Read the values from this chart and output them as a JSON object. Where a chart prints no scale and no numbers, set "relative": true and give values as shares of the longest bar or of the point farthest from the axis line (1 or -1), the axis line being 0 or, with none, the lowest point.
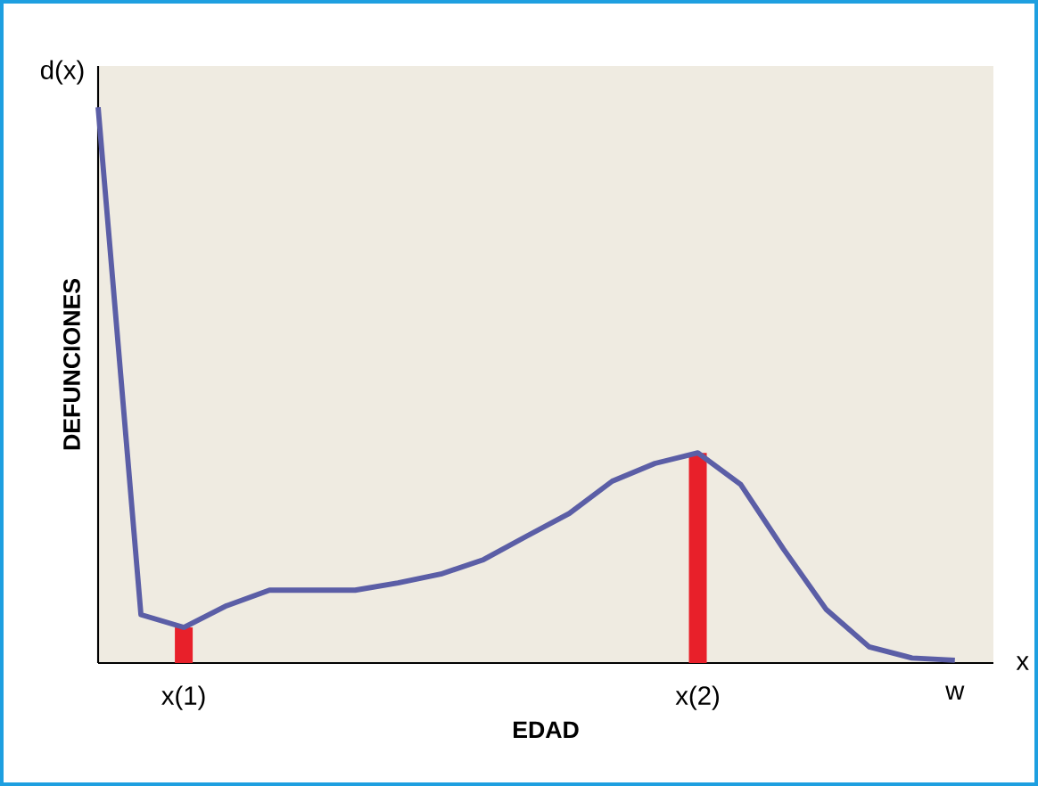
{
  "chart_data": {
    "type": "line",
    "relative": true,
    "xlabel": "EDAD",
    "ylabel": "DEFUNCIONES",
    "annotations": [
      "d(x)",
      "x"
    ],
    "categories": [
      null,
      null,
      "x(1)",
      null,
      null,
      null,
      null,
      null,
      null,
      null,
      null,
      null,
      null,
      null,
      "x(2)",
      null,
      null,
      null,
      null,
      null,
      "w"
    ],
    "series": [
      {
        "type": "bar",
        "color": "#e8202a",
        "values": [
          null,
          null,
          0.064,
          null,
          null,
          null,
          null,
          null,
          null,
          null,
          null,
          null,
          null,
          null,
          0.378,
          null,
          null,
          null,
          null,
          null,
          null
        ]
      },
      {
        "color": "#5b5ea6",
        "values": [
          1,
          0.087,
          0.064,
          0.103,
          0.131,
          0.131,
          0.131,
          0.144,
          0.16,
          0.186,
          0.228,
          0.269,
          0.327,
          0.359,
          0.378,
          0.321,
          0.205,
          0.096,
          0.029,
          0.009,
          0.005
        ]
      }
    ]
  }
}
